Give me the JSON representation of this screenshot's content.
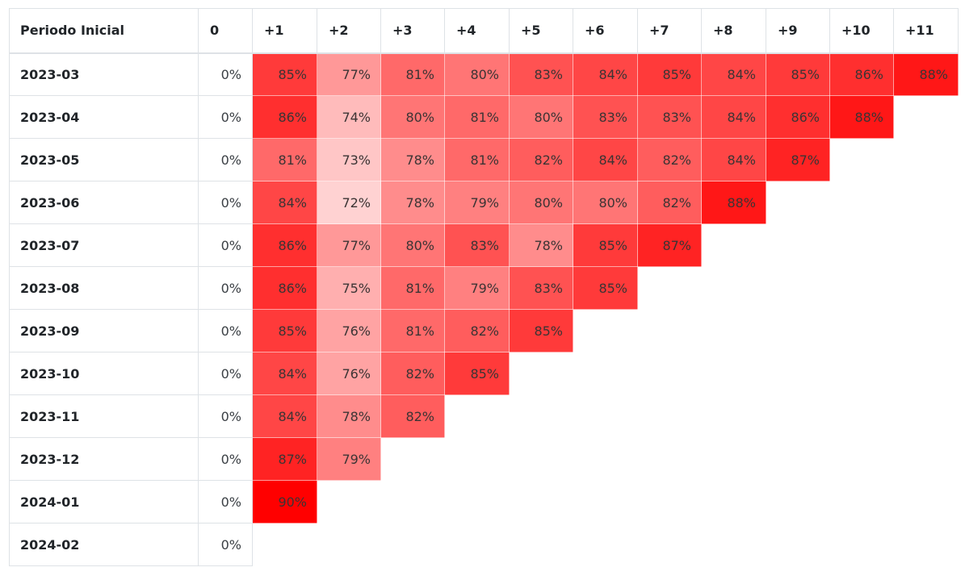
{
  "chart_data": {
    "type": "heatmap",
    "row_header": "Periodo Inicial",
    "columns": [
      "0",
      "+1",
      "+2",
      "+3",
      "+4",
      "+5",
      "+6",
      "+7",
      "+8",
      "+9",
      "+10",
      "+11"
    ],
    "rows": [
      {
        "label": "2023-03",
        "values": [
          0,
          85,
          77,
          81,
          80,
          83,
          84,
          85,
          84,
          85,
          86,
          88
        ]
      },
      {
        "label": "2023-04",
        "values": [
          0,
          86,
          74,
          80,
          81,
          80,
          83,
          83,
          84,
          86,
          88
        ]
      },
      {
        "label": "2023-05",
        "values": [
          0,
          81,
          73,
          78,
          81,
          82,
          84,
          82,
          84,
          87
        ]
      },
      {
        "label": "2023-06",
        "values": [
          0,
          84,
          72,
          78,
          79,
          80,
          80,
          82,
          88
        ]
      },
      {
        "label": "2023-07",
        "values": [
          0,
          86,
          77,
          80,
          83,
          78,
          85,
          87
        ]
      },
      {
        "label": "2023-08",
        "values": [
          0,
          86,
          75,
          81,
          79,
          83,
          85
        ]
      },
      {
        "label": "2023-09",
        "values": [
          0,
          85,
          76,
          81,
          82,
          85
        ]
      },
      {
        "label": "2023-10",
        "values": [
          0,
          84,
          76,
          82,
          85
        ]
      },
      {
        "label": "2023-11",
        "values": [
          0,
          84,
          78,
          82
        ]
      },
      {
        "label": "2023-12",
        "values": [
          0,
          87,
          79
        ]
      },
      {
        "label": "2024-01",
        "values": [
          0,
          90
        ]
      },
      {
        "label": "2024-02",
        "values": [
          0
        ]
      }
    ],
    "value_suffix": "%",
    "color_scale": {
      "low": "#ffd2d2",
      "high": "#ff0000",
      "min": 72,
      "max": 90
    }
  }
}
